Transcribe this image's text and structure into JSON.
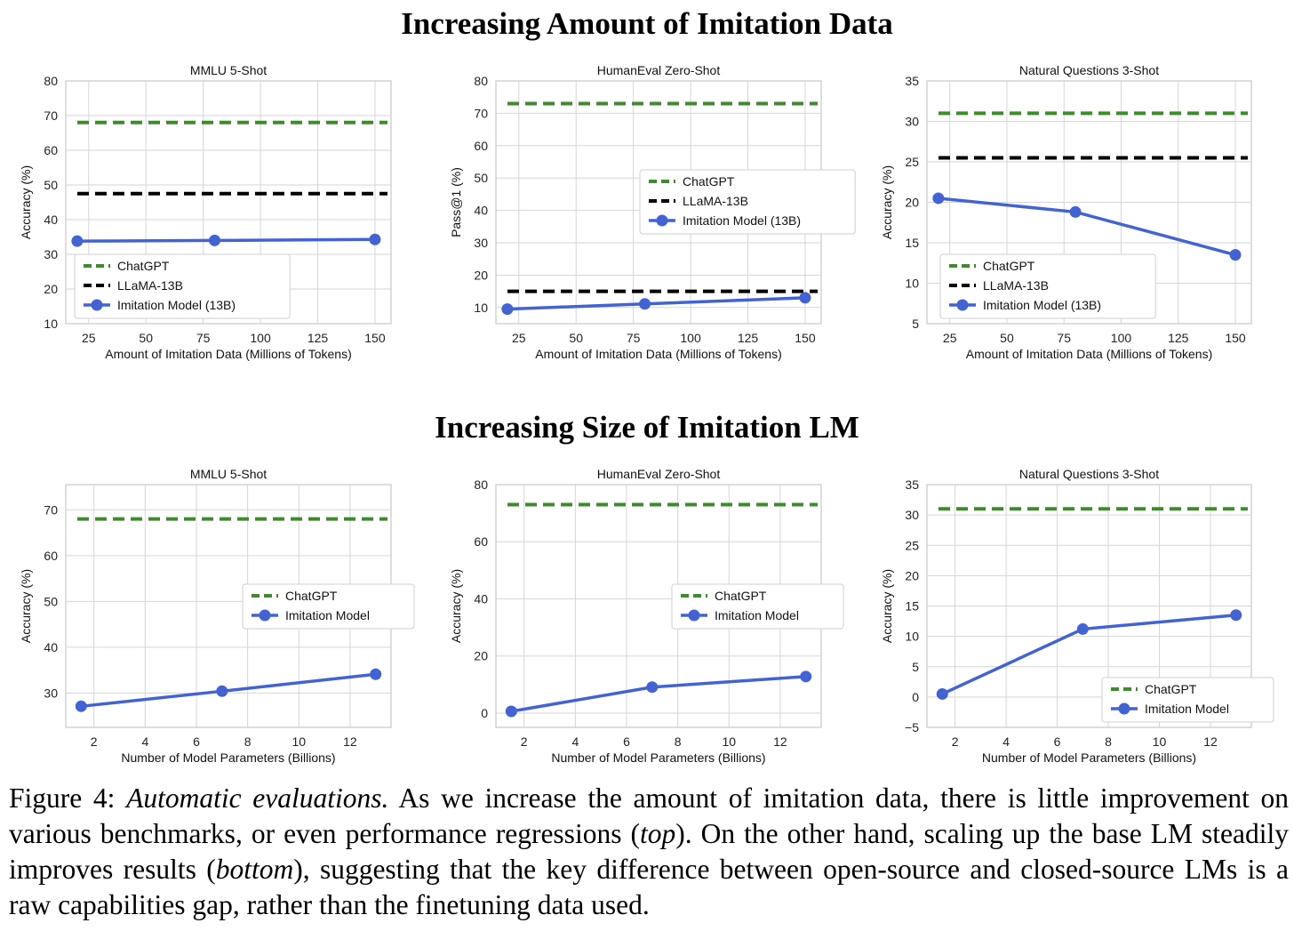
{
  "figure": {
    "row_titles": [
      "Increasing Amount of Imitation Data",
      "Increasing Size of Imitation LM"
    ],
    "caption": {
      "label": "Figure 4:",
      "title": "Automatic evaluations.",
      "t1": "As we increase the amount of imitation data, there is little improvement on various benchmarks, or even performance regressions (",
      "i1": "top",
      "t2": "). On the other hand, scaling up the base LM steadily improves results (",
      "i2": "bottom",
      "t3": "), suggesting that the key difference between open-source and closed-source LMs is a raw capabilities gap, rather than the finetuning data used."
    }
  },
  "colors": {
    "chatgpt": "#3f8a2e",
    "llama": "#000000",
    "imitation": "#4363d2",
    "grid": "#d6d6d6",
    "axis": "#c8c8c8"
  },
  "chart_data": [
    {
      "type": "line",
      "title": "MMLU 5-Shot",
      "xlabel": "Amount of Imitation Data (Millions of Tokens)",
      "ylabel": "Accuracy (%)",
      "xlim": [
        15,
        157
      ],
      "ylim": [
        10,
        80
      ],
      "xticks": [
        25,
        50,
        75,
        100,
        125,
        150
      ],
      "yticks": [
        10,
        20,
        30,
        40,
        50,
        60,
        70,
        80
      ],
      "legend": "lower-left",
      "series": [
        {
          "name": "ChatGPT",
          "style": "dashed",
          "color": "#3f8a2e",
          "y_const": 68
        },
        {
          "name": "LLaMA-13B",
          "style": "dashed",
          "color": "#000000",
          "y_const": 47.5
        },
        {
          "name": "Imitation Model (13B)",
          "style": "line-marker",
          "color": "#4363d2",
          "x": [
            20,
            80,
            150
          ],
          "y": [
            33.8,
            34.0,
            34.3
          ]
        }
      ]
    },
    {
      "type": "line",
      "title": "HumanEval Zero-Shot",
      "xlabel": "Amount of Imitation Data (Millions of Tokens)",
      "ylabel": "Pass@1 (%)",
      "xlim": [
        15,
        157
      ],
      "ylim": [
        5,
        80
      ],
      "xticks": [
        25,
        50,
        75,
        100,
        125,
        150
      ],
      "yticks": [
        10,
        20,
        30,
        40,
        50,
        60,
        70,
        80
      ],
      "legend": "center-right",
      "series": [
        {
          "name": "ChatGPT",
          "style": "dashed",
          "color": "#3f8a2e",
          "y_const": 73
        },
        {
          "name": "LLaMA-13B",
          "style": "dashed",
          "color": "#000000",
          "y_const": 15
        },
        {
          "name": "Imitation Model (13B)",
          "style": "line-marker",
          "color": "#4363d2",
          "x": [
            20,
            80,
            150
          ],
          "y": [
            9.5,
            11.1,
            13.0
          ]
        }
      ]
    },
    {
      "type": "line",
      "title": "Natural Questions 3-Shot",
      "xlabel": "Amount of Imitation Data (Millions of Tokens)",
      "ylabel": "Accuracy (%)",
      "xlim": [
        15,
        157
      ],
      "ylim": [
        5,
        35
      ],
      "xticks": [
        25,
        50,
        75,
        100,
        125,
        150
      ],
      "yticks": [
        5,
        10,
        15,
        20,
        25,
        30,
        35
      ],
      "legend": "lower-left",
      "series": [
        {
          "name": "ChatGPT",
          "style": "dashed",
          "color": "#3f8a2e",
          "y_const": 31
        },
        {
          "name": "LLaMA-13B",
          "style": "dashed",
          "color": "#000000",
          "y_const": 25.5
        },
        {
          "name": "Imitation Model (13B)",
          "style": "line-marker",
          "color": "#4363d2",
          "x": [
            20,
            80,
            150
          ],
          "y": [
            20.5,
            18.8,
            13.5
          ]
        }
      ]
    },
    {
      "type": "line",
      "title": "MMLU 5-Shot",
      "xlabel": "Number of Model Parameters (Billions)",
      "ylabel": "Accuracy (%)",
      "xlim": [
        0.9,
        13.6
      ],
      "ylim": [
        22.5,
        75.5
      ],
      "xticks": [
        2,
        4,
        6,
        8,
        10,
        12
      ],
      "yticks": [
        30,
        40,
        50,
        60,
        70
      ],
      "legend": "center-right",
      "series": [
        {
          "name": "ChatGPT",
          "style": "dashed",
          "color": "#3f8a2e",
          "y_const": 68
        },
        {
          "name": "Imitation Model",
          "style": "line-marker",
          "color": "#4363d2",
          "x": [
            1.5,
            7,
            13
          ],
          "y": [
            27.1,
            30.4,
            34.1
          ]
        }
      ]
    },
    {
      "type": "line",
      "title": "HumanEval Zero-Shot",
      "xlabel": "Number of Model Parameters (Billions)",
      "ylabel": "Accuracy (%)",
      "xlim": [
        0.9,
        13.6
      ],
      "ylim": [
        -5,
        80
      ],
      "xticks": [
        2,
        4,
        6,
        8,
        10,
        12
      ],
      "yticks": [
        0,
        20,
        40,
        60,
        80
      ],
      "legend": "center-right",
      "series": [
        {
          "name": "ChatGPT",
          "style": "dashed",
          "color": "#3f8a2e",
          "y_const": 73
        },
        {
          "name": "Imitation Model",
          "style": "line-marker",
          "color": "#4363d2",
          "x": [
            1.5,
            7,
            13
          ],
          "y": [
            0.6,
            9.1,
            12.8
          ]
        }
      ]
    },
    {
      "type": "line",
      "title": "Natural Questions 3-Shot",
      "xlabel": "Number of Model Parameters (Billions)",
      "ylabel": "Accuracy (%)",
      "xlim": [
        0.9,
        13.6
      ],
      "ylim": [
        -5,
        35
      ],
      "xticks": [
        2,
        4,
        6,
        8,
        10,
        12
      ],
      "yticks": [
        -5,
        0,
        5,
        10,
        15,
        20,
        25,
        30,
        35
      ],
      "legend": "lower-right",
      "series": [
        {
          "name": "ChatGPT",
          "style": "dashed",
          "color": "#3f8a2e",
          "y_const": 31
        },
        {
          "name": "Imitation Model",
          "style": "line-marker",
          "color": "#4363d2",
          "x": [
            1.5,
            7,
            13
          ],
          "y": [
            0.5,
            11.2,
            13.5
          ]
        }
      ]
    }
  ]
}
